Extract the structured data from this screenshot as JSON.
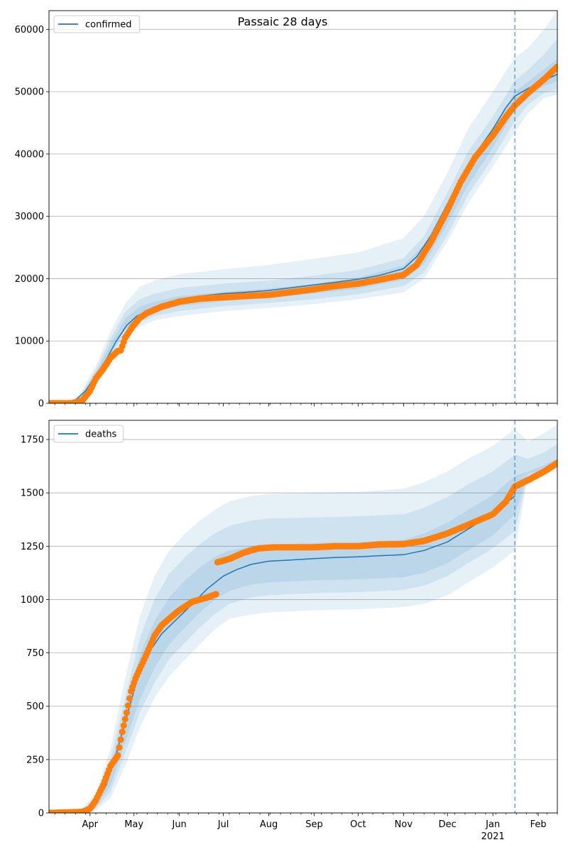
{
  "figure": {
    "title": "Passaic 28 days"
  },
  "chart_data": [
    {
      "type": "line",
      "name": "confirmed-panel",
      "title": "Passaic 28 days",
      "xlabel": "",
      "ylabel": "",
      "x_ticks": [
        "Apr",
        "May",
        "Jun",
        "Jul",
        "Aug",
        "Sep",
        "Oct",
        "Nov",
        "Dec",
        "Jan",
        "Feb"
      ],
      "x_tick_dates": [
        "2020-04-01",
        "2020-05-01",
        "2020-06-01",
        "2020-07-01",
        "2020-08-01",
        "2020-09-01",
        "2020-10-01",
        "2020-11-01",
        "2020-12-01",
        "2021-01-01",
        "2021-02-01"
      ],
      "x_secondary_label": "2021",
      "x_range": [
        "2020-03-04",
        "2021-02-14"
      ],
      "ylim": [
        0,
        63000
      ],
      "y_ticks": [
        0,
        10000,
        20000,
        30000,
        40000,
        50000,
        60000
      ],
      "grid": "horizontal",
      "legend": {
        "position": "top-left",
        "label": "confirmed"
      },
      "forecast_start": "2021-01-16",
      "colors": {
        "fit": "#1f77b4",
        "observed": "#ff7f0e",
        "band": "#1f77b4"
      },
      "fit": {
        "name": "confirmed",
        "x": [
          "2020-03-04",
          "2020-03-15",
          "2020-03-22",
          "2020-03-29",
          "2020-04-05",
          "2020-04-12",
          "2020-04-19",
          "2020-04-26",
          "2020-05-03",
          "2020-05-10",
          "2020-05-20",
          "2020-06-01",
          "2020-06-15",
          "2020-07-01",
          "2020-07-15",
          "2020-08-01",
          "2020-08-15",
          "2020-09-01",
          "2020-09-15",
          "2020-10-01",
          "2020-10-15",
          "2020-11-01",
          "2020-11-10",
          "2020-11-20",
          "2020-12-01",
          "2020-12-10",
          "2020-12-20",
          "2021-01-01",
          "2021-01-10",
          "2021-01-16",
          "2021-01-25",
          "2021-02-05",
          "2021-02-14"
        ],
        "y": [
          0,
          0,
          500,
          2000,
          4500,
          7000,
          10000,
          12500,
          14000,
          14800,
          15800,
          16600,
          17200,
          17600,
          17800,
          18100,
          18500,
          19000,
          19400,
          19900,
          20500,
          21600,
          23500,
          27000,
          32000,
          36000,
          40000,
          44000,
          47500,
          49300,
          50500,
          51800,
          52800
        ]
      },
      "observed": {
        "x": [
          "2020-03-04",
          "2020-03-20",
          "2020-03-27",
          "2020-04-01",
          "2020-04-05",
          "2020-04-10",
          "2020-04-15",
          "2020-04-20",
          "2020-04-22",
          "2020-04-25",
          "2020-04-30",
          "2020-05-05",
          "2020-05-10",
          "2020-05-20",
          "2020-06-01",
          "2020-06-15",
          "2020-07-01",
          "2020-07-15",
          "2020-08-01",
          "2020-08-15",
          "2020-09-01",
          "2020-09-15",
          "2020-10-01",
          "2020-10-15",
          "2020-11-01",
          "2020-11-10",
          "2020-11-20",
          "2020-12-01",
          "2020-12-10",
          "2020-12-20",
          "2021-01-01",
          "2021-01-10",
          "2021-01-16",
          "2021-01-25",
          "2021-02-05",
          "2021-02-14"
        ],
        "y": [
          0,
          0,
          500,
          2000,
          4000,
          5500,
          7300,
          8400,
          8500,
          10500,
          12300,
          13700,
          14500,
          15500,
          16300,
          16800,
          17000,
          17200,
          17400,
          17800,
          18300,
          18800,
          19200,
          19800,
          20600,
          22200,
          26000,
          31000,
          35500,
          39500,
          43000,
          46000,
          47800,
          49800,
          52000,
          54000
        ]
      },
      "bands": [
        {
          "name": "band-outer",
          "x": [
            "2020-03-04",
            "2020-03-15",
            "2020-03-25",
            "2020-04-05",
            "2020-04-15",
            "2020-04-25",
            "2020-05-05",
            "2020-05-15",
            "2020-06-01",
            "2020-07-01",
            "2020-08-01",
            "2020-09-01",
            "2020-10-01",
            "2020-11-01",
            "2020-11-15",
            "2020-12-01",
            "2020-12-15",
            "2021-01-01",
            "2021-01-16",
            "2021-01-25",
            "2021-02-05",
            "2021-02-14"
          ],
          "upper": [
            0,
            0,
            1500,
            6000,
            11500,
            16000,
            18700,
            19700,
            20700,
            21500,
            22200,
            23200,
            24200,
            26500,
            30000,
            37000,
            44000,
            50000,
            55500,
            57000,
            60000,
            63000
          ],
          "lower": [
            0,
            0,
            0,
            3000,
            7000,
            10500,
            12300,
            13300,
            14000,
            14800,
            15300,
            15900,
            16700,
            17800,
            20000,
            26000,
            32000,
            38000,
            43500,
            46500,
            49000,
            49500
          ]
        },
        {
          "name": "band-middle",
          "x": [
            "2020-03-04",
            "2020-03-15",
            "2020-03-25",
            "2020-04-05",
            "2020-04-15",
            "2020-04-25",
            "2020-05-05",
            "2020-05-15",
            "2020-06-01",
            "2020-07-01",
            "2020-08-01",
            "2020-09-01",
            "2020-10-01",
            "2020-11-01",
            "2020-11-15",
            "2020-12-01",
            "2020-12-15",
            "2021-01-01",
            "2021-01-16",
            "2021-01-25",
            "2021-02-05",
            "2021-02-14"
          ],
          "upper": [
            0,
            0,
            1100,
            5400,
            10400,
            14700,
            16700,
            17600,
            18500,
            19200,
            19700,
            20500,
            21400,
            23300,
            26800,
            33800,
            40400,
            46000,
            51800,
            53500,
            56000,
            58500
          ],
          "lower": [
            0,
            0,
            0,
            3400,
            7500,
            11200,
            13000,
            14000,
            14800,
            15600,
            16100,
            16700,
            17500,
            18800,
            21000,
            27000,
            33400,
            39400,
            45300,
            47900,
            49800,
            50400
          ]
        },
        {
          "name": "band-inner",
          "x": [
            "2020-03-04",
            "2020-03-15",
            "2020-03-25",
            "2020-04-05",
            "2020-04-15",
            "2020-04-25",
            "2020-05-05",
            "2020-05-15",
            "2020-06-01",
            "2020-07-01",
            "2020-08-01",
            "2020-09-01",
            "2020-10-01",
            "2020-11-01",
            "2020-11-15",
            "2020-12-01",
            "2020-12-15",
            "2021-01-01",
            "2021-01-16",
            "2021-01-25",
            "2021-02-05",
            "2021-02-14"
          ],
          "upper": [
            0,
            0,
            900,
            4900,
            9500,
            13600,
            15500,
            16300,
            17200,
            17900,
            18400,
            19200,
            20200,
            22100,
            25400,
            32100,
            38400,
            43900,
            50000,
            51600,
            53600,
            55300
          ],
          "lower": [
            0,
            0,
            0,
            3700,
            8000,
            11800,
            13700,
            14700,
            15600,
            16400,
            16900,
            17600,
            18400,
            19800,
            22300,
            28800,
            35000,
            41000,
            47000,
            49200,
            50900,
            51700
          ]
        }
      ]
    },
    {
      "type": "line",
      "name": "deaths-panel",
      "title": "",
      "xlabel": "",
      "ylabel": "",
      "x_ticks": [
        "Apr",
        "May",
        "Jun",
        "Jul",
        "Aug",
        "Sep",
        "Oct",
        "Nov",
        "Dec",
        "Jan",
        "Feb"
      ],
      "x_tick_dates": [
        "2020-04-01",
        "2020-05-01",
        "2020-06-01",
        "2020-07-01",
        "2020-08-01",
        "2020-09-01",
        "2020-10-01",
        "2020-11-01",
        "2020-12-01",
        "2021-01-01",
        "2021-02-01"
      ],
      "x_secondary_label": "2021",
      "x_range": [
        "2020-03-04",
        "2021-02-14"
      ],
      "ylim": [
        0,
        1840
      ],
      "y_ticks": [
        0,
        250,
        500,
        750,
        1000,
        1250,
        1500,
        1750
      ],
      "grid": "horizontal",
      "legend": {
        "position": "top-left",
        "label": "deaths"
      },
      "forecast_start": "2021-01-16",
      "colors": {
        "fit": "#1f77b4",
        "observed": "#ff7f0e",
        "band": "#1f77b4"
      },
      "fit": {
        "name": "deaths",
        "x": [
          "2020-03-04",
          "2020-03-22",
          "2020-03-29",
          "2020-04-05",
          "2020-04-12",
          "2020-04-19",
          "2020-04-26",
          "2020-05-03",
          "2020-05-10",
          "2020-05-20",
          "2020-06-01",
          "2020-06-10",
          "2020-06-20",
          "2020-07-01",
          "2020-07-10",
          "2020-07-20",
          "2020-08-01",
          "2020-08-15",
          "2020-09-01",
          "2020-09-15",
          "2020-10-01",
          "2020-10-15",
          "2020-11-01",
          "2020-11-15",
          "2020-12-01",
          "2020-12-15",
          "2021-01-01",
          "2021-01-16"
        ],
        "y": [
          0,
          0,
          5,
          40,
          130,
          280,
          450,
          620,
          740,
          840,
          920,
          980,
          1050,
          1110,
          1140,
          1165,
          1180,
          1185,
          1192,
          1197,
          1200,
          1205,
          1210,
          1230,
          1270,
          1330,
          1400,
          1485
        ]
      },
      "observed": {
        "x": [
          "2020-03-04",
          "2020-03-27",
          "2020-04-01",
          "2020-04-05",
          "2020-04-10",
          "2020-04-15",
          "2020-04-20",
          "2020-04-23",
          "2020-04-26",
          "2020-04-29",
          "2020-05-02",
          "2020-05-06",
          "2020-05-10",
          "2020-05-15",
          "2020-05-20",
          "2020-05-25",
          "2020-06-01",
          "2020-06-10",
          "2020-06-20",
          "2020-06-26",
          "2020-06-27",
          "2020-07-05",
          "2020-07-15",
          "2020-07-25",
          "2020-08-05",
          "2020-08-20",
          "2020-09-01",
          "2020-09-15",
          "2020-10-01",
          "2020-10-15",
          "2020-11-01",
          "2020-11-15",
          "2020-12-01",
          "2020-12-15",
          "2021-01-01",
          "2021-01-10",
          "2021-01-16",
          "2021-01-25",
          "2021-02-05",
          "2021-02-14"
        ],
        "y": [
          0,
          5,
          20,
          60,
          130,
          220,
          270,
          380,
          470,
          570,
          630,
          690,
          750,
          830,
          880,
          910,
          950,
          990,
          1010,
          1025,
          1175,
          1190,
          1220,
          1240,
          1245,
          1245,
          1245,
          1250,
          1250,
          1258,
          1260,
          1275,
          1310,
          1350,
          1400,
          1460,
          1530,
          1560,
          1600,
          1640
        ]
      },
      "bands": [
        {
          "name": "band-outer",
          "x": [
            "2020-03-04",
            "2020-03-25",
            "2020-04-05",
            "2020-04-15",
            "2020-04-25",
            "2020-05-05",
            "2020-05-15",
            "2020-05-25",
            "2020-06-05",
            "2020-06-15",
            "2020-06-25",
            "2020-07-05",
            "2020-07-20",
            "2020-08-01",
            "2020-09-01",
            "2020-10-01",
            "2020-11-01",
            "2020-11-15",
            "2020-12-01",
            "2020-12-15",
            "2021-01-01",
            "2021-01-16",
            "2021-01-25",
            "2021-02-05",
            "2021-02-14"
          ],
          "upper": [
            0,
            10,
            90,
            300,
            630,
            920,
            1110,
            1230,
            1310,
            1370,
            1420,
            1460,
            1485,
            1495,
            1500,
            1505,
            1520,
            1550,
            1600,
            1660,
            1720,
            1800,
            1740,
            1780,
            1820
          ],
          "lower": [
            0,
            0,
            10,
            70,
            220,
            400,
            540,
            640,
            720,
            790,
            860,
            910,
            930,
            940,
            950,
            955,
            965,
            980,
            1020,
            1080,
            1150,
            1230,
            1580,
            1590,
            1600
          ]
        },
        {
          "name": "band-middle",
          "x": [
            "2020-03-04",
            "2020-03-25",
            "2020-04-05",
            "2020-04-15",
            "2020-04-25",
            "2020-05-05",
            "2020-05-15",
            "2020-05-25",
            "2020-06-05",
            "2020-06-15",
            "2020-06-25",
            "2020-07-05",
            "2020-07-20",
            "2020-08-01",
            "2020-09-01",
            "2020-10-01",
            "2020-11-01",
            "2020-11-15",
            "2020-12-01",
            "2020-12-15",
            "2021-01-01",
            "2021-01-16",
            "2021-01-25",
            "2021-02-05",
            "2021-02-14"
          ],
          "upper": [
            0,
            8,
            70,
            250,
            540,
            820,
            1000,
            1120,
            1200,
            1260,
            1310,
            1345,
            1370,
            1380,
            1385,
            1390,
            1400,
            1430,
            1480,
            1540,
            1600,
            1680,
            1660,
            1690,
            1730
          ],
          "lower": [
            0,
            0,
            20,
            100,
            280,
            470,
            610,
            720,
            800,
            870,
            930,
            980,
            1010,
            1020,
            1030,
            1035,
            1045,
            1065,
            1110,
            1170,
            1240,
            1320,
            1580,
            1600,
            1615
          ]
        },
        {
          "name": "band-inner",
          "x": [
            "2020-03-04",
            "2020-03-25",
            "2020-04-05",
            "2020-04-15",
            "2020-04-25",
            "2020-05-05",
            "2020-05-15",
            "2020-05-25",
            "2020-06-05",
            "2020-06-15",
            "2020-06-25",
            "2020-07-05",
            "2020-07-20",
            "2020-08-01",
            "2020-09-01",
            "2020-10-01",
            "2020-11-01",
            "2020-11-15",
            "2020-12-01",
            "2020-12-15",
            "2021-01-01",
            "2021-01-16",
            "2021-01-25",
            "2021-02-05",
            "2021-02-14"
          ],
          "upper": [
            0,
            6,
            55,
            210,
            480,
            740,
            900,
            1010,
            1090,
            1150,
            1200,
            1230,
            1250,
            1255,
            1265,
            1270,
            1280,
            1310,
            1360,
            1420,
            1490,
            1580,
            1600,
            1630,
            1660
          ],
          "lower": [
            0,
            0,
            25,
            130,
            330,
            530,
            680,
            790,
            870,
            940,
            1000,
            1040,
            1070,
            1080,
            1090,
            1095,
            1105,
            1125,
            1170,
            1230,
            1300,
            1400,
            1590,
            1605,
            1625
          ]
        }
      ]
    }
  ]
}
